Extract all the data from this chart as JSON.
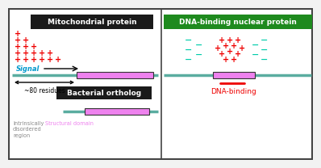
{
  "bg_color": "#f2f2f2",
  "panel_bg": "#ffffff",
  "border_color": "#444444",
  "title_left": "Mitochondrial protein",
  "title_left_bg": "#1a1a1a",
  "title_left_fg": "#ffffff",
  "title_right": "DNA-binding nuclear protein",
  "title_right_bg": "#1e8a1e",
  "title_right_fg": "#ffffff",
  "teal_color": "#5aada0",
  "pink_color": "#ee82ee",
  "red_color": "#ee0000",
  "cyan_minus_color": "#00ccaa",
  "signal_text": "Signal",
  "signal_color": "#0099cc",
  "arrow_text": "~80 residues",
  "bacterial_title": "Bacterial ortholog",
  "bacterial_title_bg": "#1a1a1a",
  "bacterial_title_fg": "#ffffff",
  "idr_text": "Intrinsically\ndisordered\nregion",
  "idr_color": "#888888",
  "struct_text": "Structural domain",
  "struct_color": "#ee82ee",
  "dna_binding_text": "DNA-binding",
  "dna_binding_color": "#ee0000"
}
